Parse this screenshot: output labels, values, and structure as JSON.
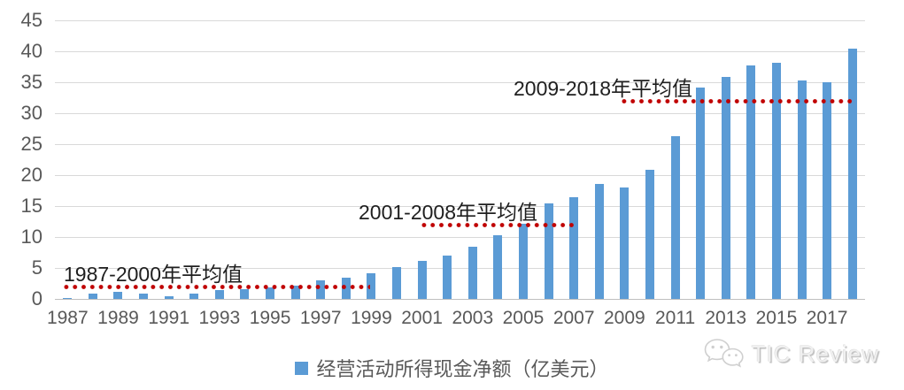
{
  "chart_data": {
    "type": "bar",
    "title": "",
    "grid": true,
    "legend_position": "bottom",
    "legend": [
      "经营活动所得现金净额（亿美元）"
    ],
    "categories": [
      1987,
      1988,
      1989,
      1990,
      1991,
      1992,
      1993,
      1994,
      1995,
      1996,
      1997,
      1998,
      1999,
      2000,
      2001,
      2002,
      2003,
      2004,
      2005,
      2006,
      2007,
      2008,
      2009,
      2010,
      2011,
      2012,
      2013,
      2014,
      2015,
      2016,
      2017,
      2018
    ],
    "values": [
      0.1,
      0.8,
      1.1,
      0.8,
      0.4,
      0.8,
      1.4,
      1.6,
      1.8,
      2.2,
      3.0,
      3.5,
      4.2,
      5.2,
      6.1,
      7.0,
      8.5,
      10.3,
      12.1,
      15.5,
      16.4,
      18.6,
      18.0,
      20.8,
      26.3,
      34.1,
      35.9,
      37.7,
      38.1,
      35.3,
      35.0,
      40.4
    ],
    "ylim": [
      0,
      45
    ],
    "ytick_step": 5,
    "ytick_labels": [
      "0",
      "5",
      "10",
      "15",
      "20",
      "25",
      "30",
      "35",
      "40",
      "45"
    ],
    "xtick_labels": [
      "1987",
      "1989",
      "1991",
      "1993",
      "1995",
      "1997",
      "1999",
      "2001",
      "2003",
      "2005",
      "2007",
      "2009",
      "2011",
      "2013",
      "2015",
      "2017"
    ],
    "annotations": [
      {
        "label": "1987-2000年平均值",
        "value": 2,
        "start_year": 1987,
        "end_year": 2000
      },
      {
        "label": "2001-2008年平均值",
        "value": 12,
        "start_year": 2001,
        "end_year": 2008
      },
      {
        "label": "2009-2018年平均值",
        "value": 32,
        "start_year": 2009,
        "end_year": 2018
      }
    ],
    "colors": {
      "bar": "#5B9BD5",
      "avg_line": "#C00000",
      "gridline": "#D9D9D9",
      "axis_line": "#BFBFBF",
      "tick_text": "#595959",
      "annotation_text": "#1F1F1F"
    }
  },
  "watermark": {
    "text": "TIC Review",
    "icon": "wechat-logo-icon"
  }
}
